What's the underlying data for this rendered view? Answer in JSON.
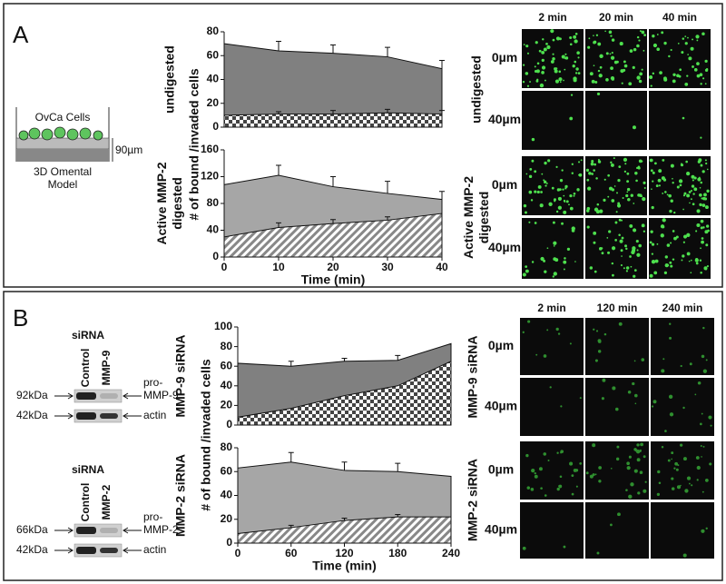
{
  "panel_a": {
    "label": "A",
    "schematic": {
      "cells": "OvCa Cells",
      "depth": "90µm",
      "model": [
        "3D Omental",
        "Model"
      ]
    },
    "images": {
      "columns": [
        "2 min",
        "20 min",
        "40 min"
      ],
      "rows": [
        "0µm",
        "40µm"
      ],
      "groups": [
        [
          "undigested"
        ],
        [
          "Active MMP-2",
          "digested"
        ]
      ]
    }
  },
  "panel_b": {
    "label": "B",
    "blots": [
      {
        "title": "siRNA",
        "lanes": [
          "Control",
          "MMP-9"
        ],
        "markers": [
          "92kDa",
          "42kDa"
        ],
        "bands": [
          [
            "pro-",
            "MMP-9"
          ],
          [
            "actin"
          ]
        ]
      },
      {
        "title": "siRNA",
        "lanes": [
          "Control",
          "MMP-2"
        ],
        "markers": [
          "66kDa",
          "42kDa"
        ],
        "bands": [
          [
            "pro-",
            "MMP-2"
          ],
          [
            "actin"
          ]
        ]
      }
    ],
    "images": {
      "columns": [
        "2 min",
        "120 min",
        "240 min"
      ],
      "rows": [
        "0µm",
        "40µm"
      ],
      "groups": [
        [
          "MMP-9 siRNA"
        ],
        [
          "MMP-2 siRNA"
        ]
      ]
    }
  },
  "chart_data": [
    {
      "type": "area",
      "group": [
        "undigested"
      ],
      "ylabel": "# of bound /invaded cells",
      "x": [
        0,
        10,
        20,
        30,
        40
      ],
      "xlim": [
        0,
        40
      ],
      "ylim": [
        0,
        80
      ],
      "yticks": [
        0,
        20,
        40,
        60,
        80
      ],
      "series": [
        {
          "color": "#808080",
          "values": [
            70,
            64,
            62,
            59,
            49
          ],
          "errors": [
            null,
            8,
            7,
            8,
            7
          ]
        },
        {
          "pattern": "checker",
          "values": [
            10,
            11,
            11,
            12,
            11
          ],
          "errors": [
            null,
            2,
            3,
            3,
            3
          ]
        }
      ]
    },
    {
      "type": "area",
      "group": [
        "Active MMP-2",
        "digested"
      ],
      "xlabel": "Time (min)",
      "x": [
        0,
        10,
        20,
        30,
        40
      ],
      "xlim": [
        0,
        40
      ],
      "xticks": [
        0,
        10,
        20,
        30,
        40
      ],
      "ylim": [
        0,
        160
      ],
      "yticks": [
        0,
        40,
        80,
        120,
        160
      ],
      "series": [
        {
          "color": "#a6a6a6",
          "values": [
            108,
            122,
            105,
            95,
            86
          ],
          "errors": [
            null,
            15,
            15,
            18,
            12
          ]
        },
        {
          "pattern": "hatch",
          "values": [
            30,
            44,
            50,
            55,
            65
          ],
          "errors": [
            null,
            7,
            6,
            5,
            null
          ]
        }
      ]
    },
    {
      "type": "area",
      "group": [
        "MMP-9 siRNA"
      ],
      "ylabel": "# of bound /invaded cells",
      "x": [
        0,
        60,
        120,
        180,
        240
      ],
      "xlim": [
        0,
        240
      ],
      "ylim": [
        0,
        100
      ],
      "yticks": [
        0,
        20,
        40,
        60,
        80,
        100
      ],
      "series": [
        {
          "color": "#808080",
          "values": [
            63,
            60,
            65,
            66,
            83
          ],
          "errors": [
            null,
            5,
            3,
            5,
            null
          ]
        },
        {
          "pattern": "checker",
          "values": [
            8,
            17,
            30,
            40,
            65
          ],
          "errors": [
            null,
            null,
            null,
            null,
            null
          ]
        }
      ]
    },
    {
      "type": "area",
      "group": [
        "MMP-2 siRNA"
      ],
      "xlabel": "Time (min)",
      "x": [
        0,
        60,
        120,
        180,
        240
      ],
      "xlim": [
        0,
        240
      ],
      "xticks": [
        0,
        60,
        120,
        180,
        240
      ],
      "ylim": [
        0,
        80
      ],
      "yticks": [
        0,
        20,
        40,
        60,
        80
      ],
      "series": [
        {
          "color": "#a6a6a6",
          "values": [
            63,
            68,
            61,
            60,
            56
          ],
          "errors": [
            null,
            8,
            7,
            7,
            null
          ]
        },
        {
          "pattern": "hatch",
          "values": [
            8,
            13,
            19,
            22,
            22
          ],
          "errors": [
            null,
            2,
            2,
            2,
            null
          ]
        }
      ]
    }
  ]
}
